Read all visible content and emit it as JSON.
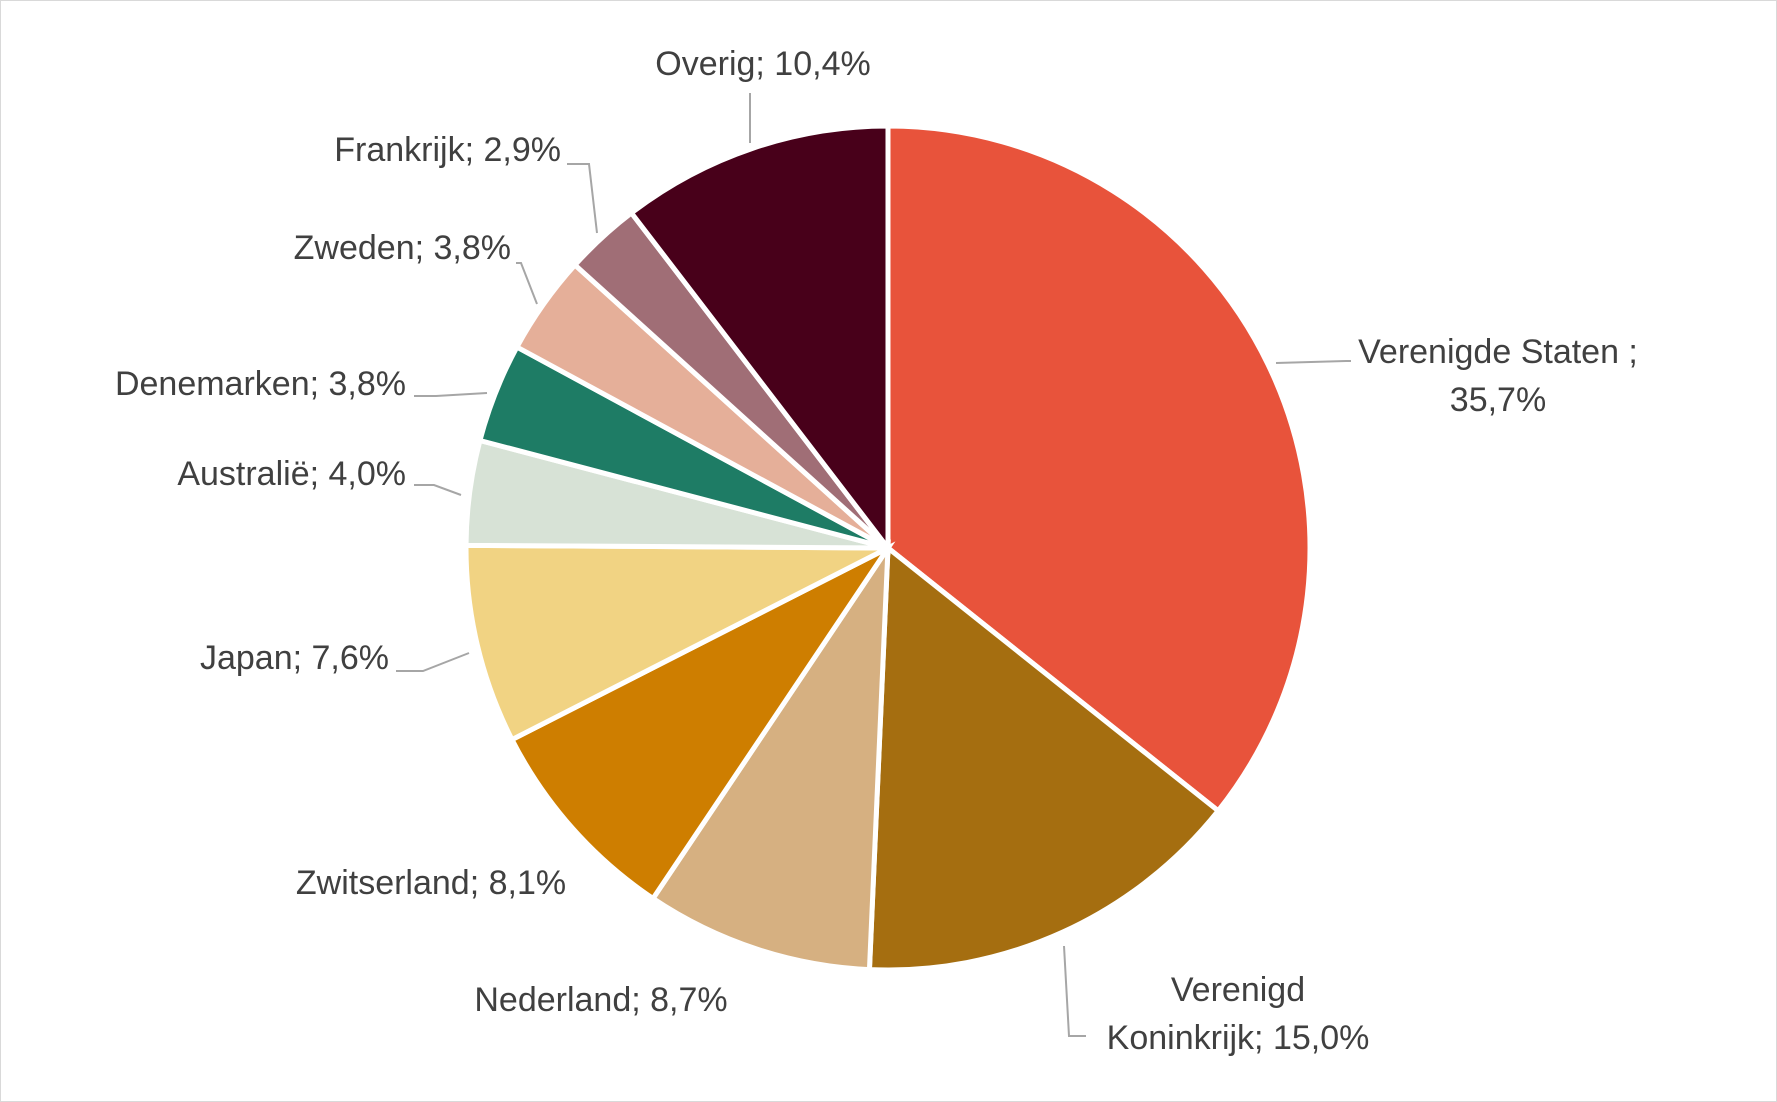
{
  "chart_data": {
    "type": "pie",
    "title": "",
    "start_angle_deg": 0,
    "direction": "clockwise",
    "slices": [
      {
        "label": "Verenigde Staten",
        "value": 35.7,
        "value_text": "35,7%",
        "color": "#E8533B"
      },
      {
        "label": "Verenigd Koninkrijk",
        "value": 15.0,
        "value_text": "15,0%",
        "color": "#A56E10"
      },
      {
        "label": "Nederland",
        "value": 8.7,
        "value_text": "8,7%",
        "color": "#D6B081"
      },
      {
        "label": "Zwitserland",
        "value": 8.1,
        "value_text": "8,1%",
        "color": "#CE7E00"
      },
      {
        "label": "Japan",
        "value": 7.6,
        "value_text": "7,6%",
        "color": "#F1D383"
      },
      {
        "label": "Australië",
        "value": 4.0,
        "value_text": "4,0%",
        "color": "#D7E2D6"
      },
      {
        "label": "Denemarken",
        "value": 3.8,
        "value_text": "3,8%",
        "color": "#1E7C65"
      },
      {
        "label": "Zweden",
        "value": 3.8,
        "value_text": "3,8%",
        "color": "#E5AF99"
      },
      {
        "label": "Frankrijk",
        "value": 2.9,
        "value_text": "2,9%",
        "color": "#A06E76"
      },
      {
        "label": "Overig",
        "value": 10.4,
        "value_text": "10,4%",
        "color": "#48001A"
      }
    ],
    "labels": [
      {
        "lines": [
          "Verenigde Staten ;",
          "35,7%"
        ]
      },
      {
        "lines": [
          "Verenigd",
          "Koninkrijk; 15,0%"
        ]
      },
      {
        "lines": [
          "Nederland; 8,7%"
        ]
      },
      {
        "lines": [
          "Zwitserland; 8,1%"
        ]
      },
      {
        "lines": [
          "Japan; 7,6%"
        ]
      },
      {
        "lines": [
          "Australië; 4,0%"
        ]
      },
      {
        "lines": [
          "Denemarken; 3,8%"
        ]
      },
      {
        "lines": [
          "Zweden; 3,8%"
        ]
      },
      {
        "lines": [
          "Frankrijk; 2,9%"
        ]
      },
      {
        "lines": [
          "Overig; 10,4%"
        ]
      }
    ],
    "legend": "none"
  }
}
